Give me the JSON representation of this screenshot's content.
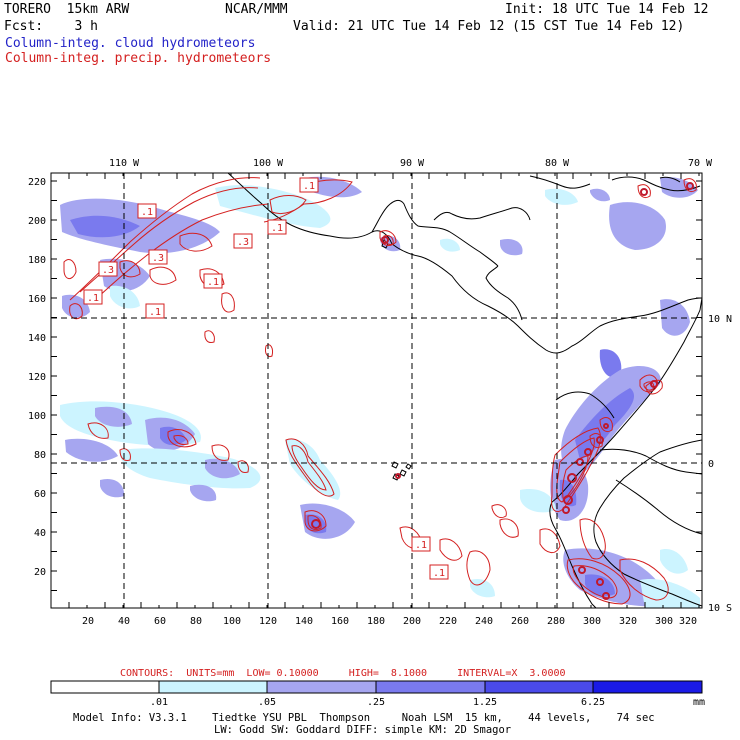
{
  "header": {
    "model": "TORERO  15km ARW",
    "org": "NCAR/MMM",
    "init": "Init: 18 UTC Tue 14 Feb 12",
    "fcst": "Fcst:    3 h",
    "valid": "Valid: 21 UTC Tue 14 Feb 12 (15 CST Tue 14 Feb 12)",
    "field1": "Column-integ. cloud hydrometeors",
    "field2": "Column-integ. precip. hydrometeors"
  },
  "map": {
    "lon_labels": [
      "110 W",
      "100 W",
      "90 W",
      "80 W",
      "70 W"
    ],
    "lat_labels": [
      "10 N",
      "0",
      "10 S"
    ],
    "x_ticks": [
      "20",
      "40",
      "60",
      "80",
      "100",
      "120",
      "140",
      "160",
      "180",
      "200",
      "220",
      "240",
      "260",
      "280",
      "300",
      "320"
    ],
    "y_ticks": [
      "220",
      "200",
      "180",
      "160",
      "140",
      "120",
      "100",
      "80",
      "60",
      "40",
      "20"
    ],
    "contour_labels": [
      ".1",
      ".1",
      ".3",
      ".1",
      ".3",
      ".1",
      ".1",
      ".1",
      ".1",
      ".1",
      ".1"
    ]
  },
  "contours_info": "CONTOURS:  UNITS=mm  LOW= 0.10000     HIGH=  8.1000     INTERVAL=X  3.0000",
  "colorbar": {
    "labels": [
      ".01",
      ".05",
      ".25",
      "1.25",
      "6.25"
    ],
    "unit": "mm",
    "colors": [
      "#ffffff",
      "#ccf4ff",
      "#a6a6f0",
      "#7a7aee",
      "#4a4aea",
      "#1a1ae6"
    ]
  },
  "footer": {
    "line1": "Model Info: V3.3.1    Tiedtke YSU PBL  Thompson     Noah LSM  15 km,    44 levels,    74 sec",
    "line2": "LW: Godd SW: Goddard DIFF: simple KM: 2D Smagor"
  }
}
